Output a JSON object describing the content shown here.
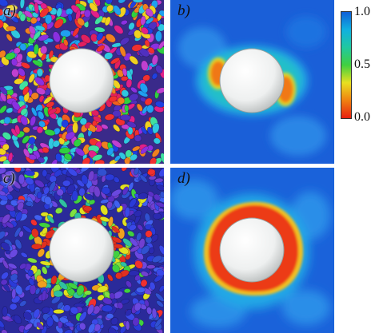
{
  "figure": {
    "panels": [
      {
        "id": "a",
        "label": "a)",
        "kind": "particle-render",
        "sphere": "white-sphere",
        "palette": "random-colors"
      },
      {
        "id": "b",
        "label": "b)",
        "kind": "color-map",
        "pattern": "two-side-lobes"
      },
      {
        "id": "c",
        "label": "c)",
        "kind": "particle-render",
        "sphere": "white-sphere",
        "palette": "mostly-blue-with-green-ring"
      },
      {
        "id": "d",
        "label": "d)",
        "kind": "color-map",
        "pattern": "full-ring"
      }
    ],
    "colorbar": {
      "ticks": [
        "1.0",
        "0.5",
        "0.0"
      ],
      "max": 1.0,
      "min": 0.0,
      "colors": [
        "#1060d8",
        "#10b0e0",
        "#20c8a0",
        "#40d040",
        "#e8e020",
        "#f08010",
        "#e82010"
      ]
    }
  }
}
